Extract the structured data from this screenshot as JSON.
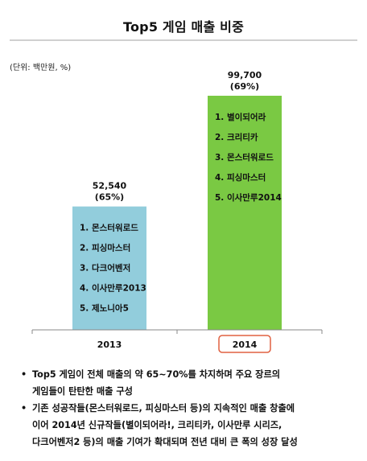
{
  "title": "Top5 게임 매출 비중",
  "unit_label": "(단위: 백만원, %)",
  "colors": {
    "bar_2013": "#92cddc",
    "bar_2014": "#7ac943",
    "highlight_box": "#e06040",
    "axis": "#888888"
  },
  "chart_data": {
    "type": "bar",
    "title": "Top5 게임 매출 비중",
    "categories": [
      "2013",
      "2014"
    ],
    "values": [
      52540,
      99700
    ],
    "value_labels": [
      "52,540",
      "99,700"
    ],
    "share_labels": [
      "(65%)",
      "(69%)"
    ],
    "ylim": [
      0,
      99700
    ],
    "grid": false,
    "highlighted_category": "2014",
    "bar_contents": [
      [
        "1. 몬스터워로드",
        "2. 피싱마스터",
        "3. 다크어벤저",
        "4. 이사만루2013",
        "5. 제노니아5"
      ],
      [
        "1. 별이되어라",
        "2. 크리티카",
        "3. 몬스터워로드",
        "4. 피싱마스터",
        "5. 이사만루2014"
      ]
    ]
  },
  "notes": [
    [
      "Top5 게임이 전체 매출의 약 65~70%를 차지하며 주요 장르의",
      "게임들이 탄탄한 매출 구성"
    ],
    [
      "기존 성공작들(몬스터워로드, 피싱마스터 등)의 지속적인 매출 창출에",
      "이어 2014년 신규작들(별이되어라!, 크리티카, 이사만루 시리즈,",
      "다크어벤저2 등)의 매출 기여가 확대되며 전년 대비 큰 폭의 성장 달성"
    ]
  ]
}
